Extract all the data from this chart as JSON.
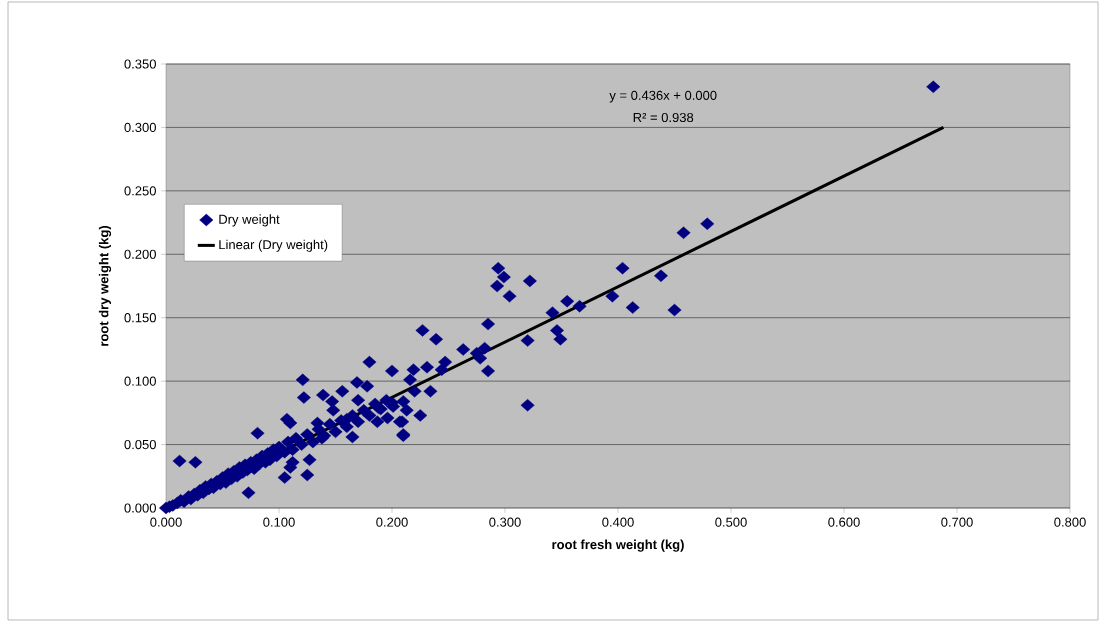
{
  "chart_data": {
    "type": "scatter",
    "xlabel": "root fresh weight (kg)",
    "ylabel": "root dry weight (kg)",
    "xlim": [
      0,
      0.8
    ],
    "ylim": [
      0,
      0.35
    ],
    "xticks": [
      {
        "value": 0,
        "label": "0.000"
      },
      {
        "value": 0.1,
        "label": "0.100"
      },
      {
        "value": 0.2,
        "label": "0.200"
      },
      {
        "value": 0.3,
        "label": "0.300"
      },
      {
        "value": 0.4,
        "label": "0.400"
      },
      {
        "value": 0.5,
        "label": "0.500"
      },
      {
        "value": 0.6,
        "label": "0.600"
      },
      {
        "value": 0.7,
        "label": "0.700"
      },
      {
        "value": 0.8,
        "label": "0.800"
      }
    ],
    "yticks": [
      {
        "value": 0,
        "label": "0.000"
      },
      {
        "value": 0.05,
        "label": "0.050"
      },
      {
        "value": 0.1,
        "label": "0.100"
      },
      {
        "value": 0.15,
        "label": "0.150"
      },
      {
        "value": 0.2,
        "label": "0.200"
      },
      {
        "value": 0.25,
        "label": "0.250"
      },
      {
        "value": 0.3,
        "label": "0.300"
      },
      {
        "value": 0.35,
        "label": "0.350"
      }
    ],
    "grid": "y",
    "legend": "left",
    "marker": "diamond",
    "annotations": [
      "y = 0.436x + 0.000",
      "R² = 0.938"
    ],
    "series": [
      {
        "name": "Dry weight",
        "color": "#000080",
        "x": [
          0.679,
          0.458,
          0.479,
          0.404,
          0.438,
          0.395,
          0.413,
          0.45,
          0.294,
          0.299,
          0.293,
          0.304,
          0.322,
          0.227,
          0.239,
          0.285,
          0.285,
          0.263,
          0.275,
          0.278,
          0.282,
          0.247,
          0.244,
          0.231,
          0.219,
          0.216,
          0.234,
          0.22,
          0.21,
          0.225,
          0.209,
          0.21,
          0.32,
          0.32,
          0.342,
          0.346,
          0.349,
          0.355,
          0.366,
          0.18,
          0.2,
          0.121,
          0.122,
          0.012,
          0.026,
          0.081,
          0.073,
          0.105,
          0.125,
          0.21,
          0.207,
          0.156,
          0.169,
          0.147,
          0.107,
          0.11,
          0.17,
          0.178,
          0.188,
          0.16,
          0.134,
          0.139,
          0.148,
          0.165,
          0.138,
          0.112,
          0.127,
          0.092,
          0.11,
          0.201,
          0.213,
          0.187,
          0.196,
          0.0,
          0.003,
          0.006,
          0.01,
          0.013,
          0.016,
          0.02,
          0.022,
          0.025,
          0.028,
          0.03,
          0.033,
          0.035,
          0.038,
          0.04,
          0.042,
          0.045,
          0.048,
          0.05,
          0.053,
          0.055,
          0.058,
          0.06,
          0.063,
          0.065,
          0.068,
          0.07,
          0.072,
          0.075,
          0.078,
          0.08,
          0.083,
          0.085,
          0.088,
          0.09,
          0.095,
          0.098,
          0.1,
          0.105,
          0.108,
          0.112,
          0.115,
          0.12,
          0.125,
          0.13,
          0.135,
          0.14,
          0.145,
          0.15,
          0.155,
          0.16,
          0.165,
          0.17,
          0.175,
          0.18,
          0.185,
          0.19,
          0.195,
          0.2
        ],
        "values": [
          0.332,
          0.217,
          0.224,
          0.189,
          0.183,
          0.167,
          0.158,
          0.156,
          0.189,
          0.182,
          0.175,
          0.167,
          0.179,
          0.14,
          0.133,
          0.145,
          0.108,
          0.125,
          0.122,
          0.118,
          0.126,
          0.115,
          0.109,
          0.111,
          0.109,
          0.101,
          0.092,
          0.092,
          0.084,
          0.073,
          0.068,
          0.058,
          0.081,
          0.132,
          0.154,
          0.14,
          0.133,
          0.163,
          0.159,
          0.115,
          0.108,
          0.101,
          0.087,
          0.037,
          0.036,
          0.059,
          0.012,
          0.024,
          0.026,
          0.057,
          0.068,
          0.092,
          0.099,
          0.084,
          0.07,
          0.067,
          0.085,
          0.096,
          0.079,
          0.07,
          0.067,
          0.089,
          0.077,
          0.056,
          0.055,
          0.036,
          0.038,
          0.038,
          0.032,
          0.08,
          0.077,
          0.068,
          0.071,
          0.0,
          0.001,
          0.002,
          0.004,
          0.006,
          0.005,
          0.009,
          0.007,
          0.011,
          0.01,
          0.014,
          0.012,
          0.017,
          0.015,
          0.019,
          0.016,
          0.021,
          0.019,
          0.024,
          0.02,
          0.027,
          0.023,
          0.029,
          0.025,
          0.032,
          0.028,
          0.034,
          0.03,
          0.036,
          0.031,
          0.038,
          0.035,
          0.041,
          0.036,
          0.043,
          0.046,
          0.041,
          0.048,
          0.044,
          0.052,
          0.046,
          0.055,
          0.05,
          0.058,
          0.052,
          0.062,
          0.057,
          0.066,
          0.06,
          0.069,
          0.064,
          0.073,
          0.068,
          0.077,
          0.073,
          0.082,
          0.078,
          0.085,
          0.083
        ]
      },
      {
        "name": "Linear (Dry weight)",
        "type": "line",
        "color": "#000000",
        "marker": "none",
        "line_style": "solid",
        "x": [
          0.0,
          0.688
        ],
        "values": [
          0.0,
          0.3
        ]
      }
    ]
  }
}
